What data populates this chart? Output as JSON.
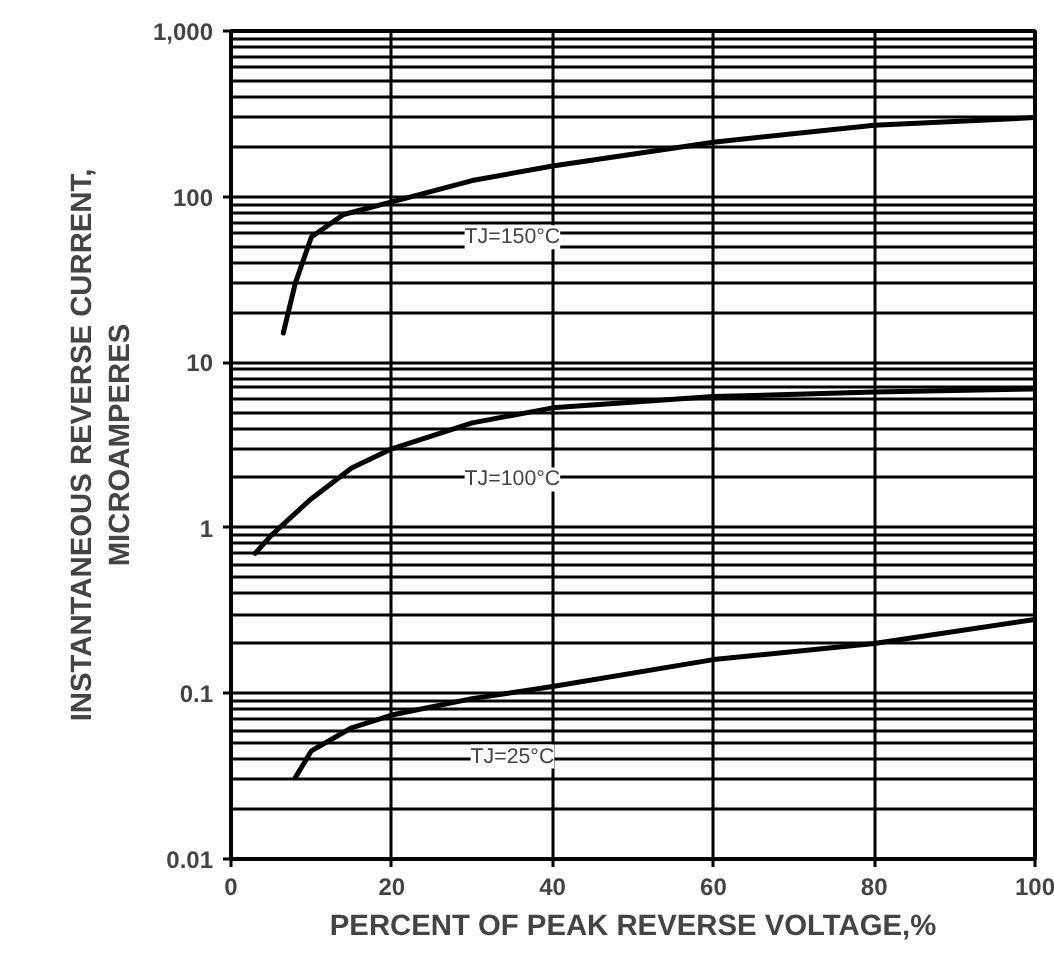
{
  "chart_data": {
    "type": "line",
    "xlabel": "PERCENT OF PEAK REVERSE VOLTAGE,%",
    "ylabel": "INSTANTANEOUS REVERSE CURRENT,\nMICROAMPERES",
    "log": "y",
    "grid": true,
    "line_style": "solid",
    "marker": "none",
    "xlim": [
      0,
      100
    ],
    "xticks": [
      0,
      20,
      40,
      60,
      80,
      100
    ],
    "ylim": [
      0.01,
      1000
    ],
    "yticks": [
      {
        "value": 0.01,
        "label": "0.01"
      },
      {
        "value": 0.1,
        "label": "0.1"
      },
      {
        "value": 1,
        "label": "1"
      },
      {
        "value": 10,
        "label": "10"
      },
      {
        "value": 100,
        "label": "100"
      },
      {
        "value": 1000,
        "label": "1,000"
      }
    ],
    "series": [
      {
        "color": "#000000",
        "x": [
          6.5,
          8,
          10,
          14,
          20,
          30,
          40,
          60,
          80,
          100
        ],
        "values": [
          15,
          30,
          57,
          78,
          93,
          125,
          153,
          213,
          270,
          300
        ]
      },
      {
        "color": "#000000",
        "x": [
          3,
          5,
          10,
          15,
          20,
          30,
          40,
          60,
          80,
          100
        ],
        "values": [
          0.7,
          0.9,
          1.5,
          2.3,
          3.0,
          4.3,
          5.3,
          6.2,
          6.6,
          6.9
        ]
      },
      {
        "color": "#000000",
        "x": [
          8,
          10,
          15,
          20,
          30,
          40,
          60,
          80,
          100
        ],
        "values": [
          0.031,
          0.045,
          0.062,
          0.074,
          0.093,
          0.11,
          0.16,
          0.2,
          0.28
        ]
      }
    ],
    "annotations": [
      "TJ=150°C",
      "TJ=100°C",
      "TJ=25°C"
    ]
  }
}
